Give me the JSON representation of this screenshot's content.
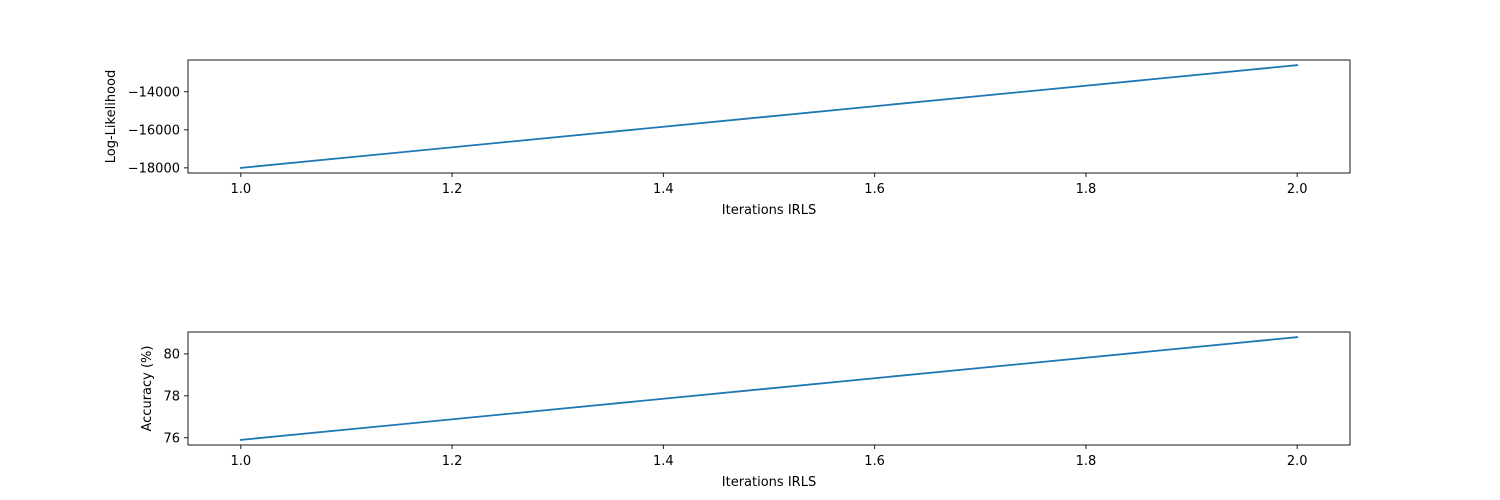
{
  "chart_data": [
    {
      "type": "line",
      "xlabel": "Iterations IRLS",
      "ylabel": "Log-Likelihood",
      "x": [
        1.0,
        2.0
      ],
      "series": [
        {
          "values": [
            -18000,
            -12600
          ]
        }
      ],
      "xlim": [
        0.95,
        2.05
      ],
      "ylim": [
        -18270,
        -12330
      ],
      "xticks": [
        1.0,
        1.2,
        1.4,
        1.6,
        1.8,
        2.0
      ],
      "xtick_labels": [
        "1.0",
        "1.2",
        "1.4",
        "1.6",
        "1.8",
        "2.0"
      ],
      "yticks": [
        -18000,
        -16000,
        -14000
      ],
      "ytick_labels": [
        "−18000",
        "−16000",
        "−14000"
      ],
      "grid": false,
      "line_color": "#1f77b4"
    },
    {
      "type": "line",
      "xlabel": "Iterations IRLS",
      "ylabel": "Accuracy (%)",
      "x": [
        1.0,
        2.0
      ],
      "series": [
        {
          "values": [
            75.9,
            80.8
          ]
        }
      ],
      "xlim": [
        0.95,
        2.05
      ],
      "ylim": [
        75.655,
        81.045
      ],
      "xticks": [
        1.0,
        1.2,
        1.4,
        1.6,
        1.8,
        2.0
      ],
      "xtick_labels": [
        "1.0",
        "1.2",
        "1.4",
        "1.6",
        "1.8",
        "2.0"
      ],
      "yticks": [
        76,
        78,
        80
      ],
      "ytick_labels": [
        "76",
        "78",
        "80"
      ],
      "grid": false,
      "line_color": "#1f77b4"
    }
  ]
}
